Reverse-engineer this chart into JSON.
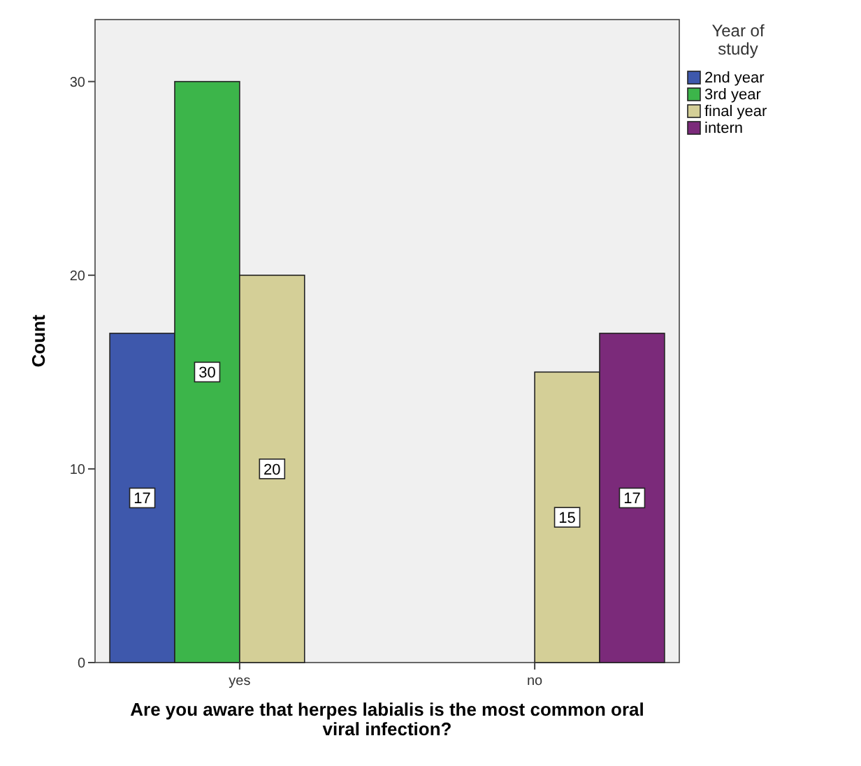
{
  "chart_data": {
    "type": "bar",
    "xlabel": "Are you aware that herpes labialis is the most common oral viral infection?",
    "ylabel": "Count",
    "legend_title": "Year of study",
    "categories": [
      "yes",
      "no"
    ],
    "series": [
      {
        "name": "2nd year",
        "color": "#3e58ac",
        "values": [
          17,
          null
        ]
      },
      {
        "name": "3rd year",
        "color": "#3cb54a",
        "values": [
          30,
          null
        ]
      },
      {
        "name": "final year",
        "color": "#d4cf97",
        "values": [
          20,
          15
        ]
      },
      {
        "name": "intern",
        "color": "#7b2a7a",
        "values": [
          null,
          17
        ]
      }
    ],
    "ylim": [
      0,
      33.2
    ],
    "yticks": [
      0,
      10,
      20,
      30
    ],
    "grid": false,
    "legend": "top right",
    "data_labels": true
  }
}
